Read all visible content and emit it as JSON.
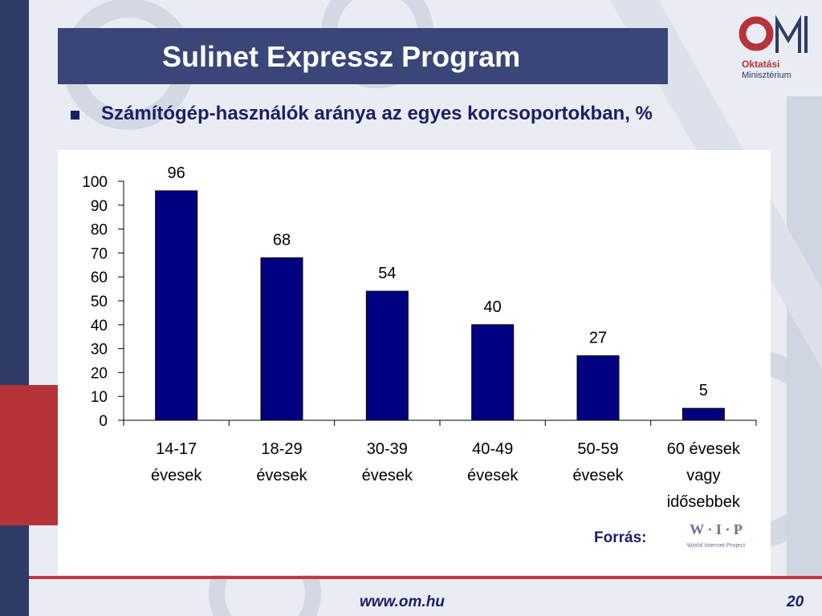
{
  "slide": {
    "title": "Sulinet Expressz Program",
    "subtitle": "Számítógép-használók aránya az egyes korcsoportokban, %",
    "logo": {
      "letters": "OM",
      "line1": "Oktatási",
      "line2": "Minisztérium"
    },
    "source_label": "Forrás:",
    "source_logo": {
      "letters": "W · I · P",
      "text": "World Internet Project"
    },
    "footer_url": "www.om.hu",
    "page_number": "20"
  },
  "colors": {
    "bar": "#000080",
    "title_bg": "#3a4677",
    "accent_red": "#b5343a",
    "text_blue": "#1a1f66"
  },
  "chart_data": {
    "type": "bar",
    "categories": [
      [
        "14-17",
        "évesek"
      ],
      [
        "18-29",
        "évesek"
      ],
      [
        "30-39",
        "évesek"
      ],
      [
        "40-49",
        "évesek"
      ],
      [
        "50-59",
        "évesek"
      ],
      [
        "60 évesek",
        "vagy",
        "idősebbek"
      ]
    ],
    "values": [
      96,
      68,
      54,
      40,
      27,
      5
    ],
    "data_labels": [
      "96",
      "68",
      "54",
      "40",
      "27",
      "5"
    ],
    "yticks": [
      "0",
      "10",
      "20",
      "30",
      "40",
      "50",
      "60",
      "70",
      "80",
      "90",
      "100"
    ],
    "ylim": [
      0,
      100
    ],
    "grid": false,
    "legend": "none"
  }
}
